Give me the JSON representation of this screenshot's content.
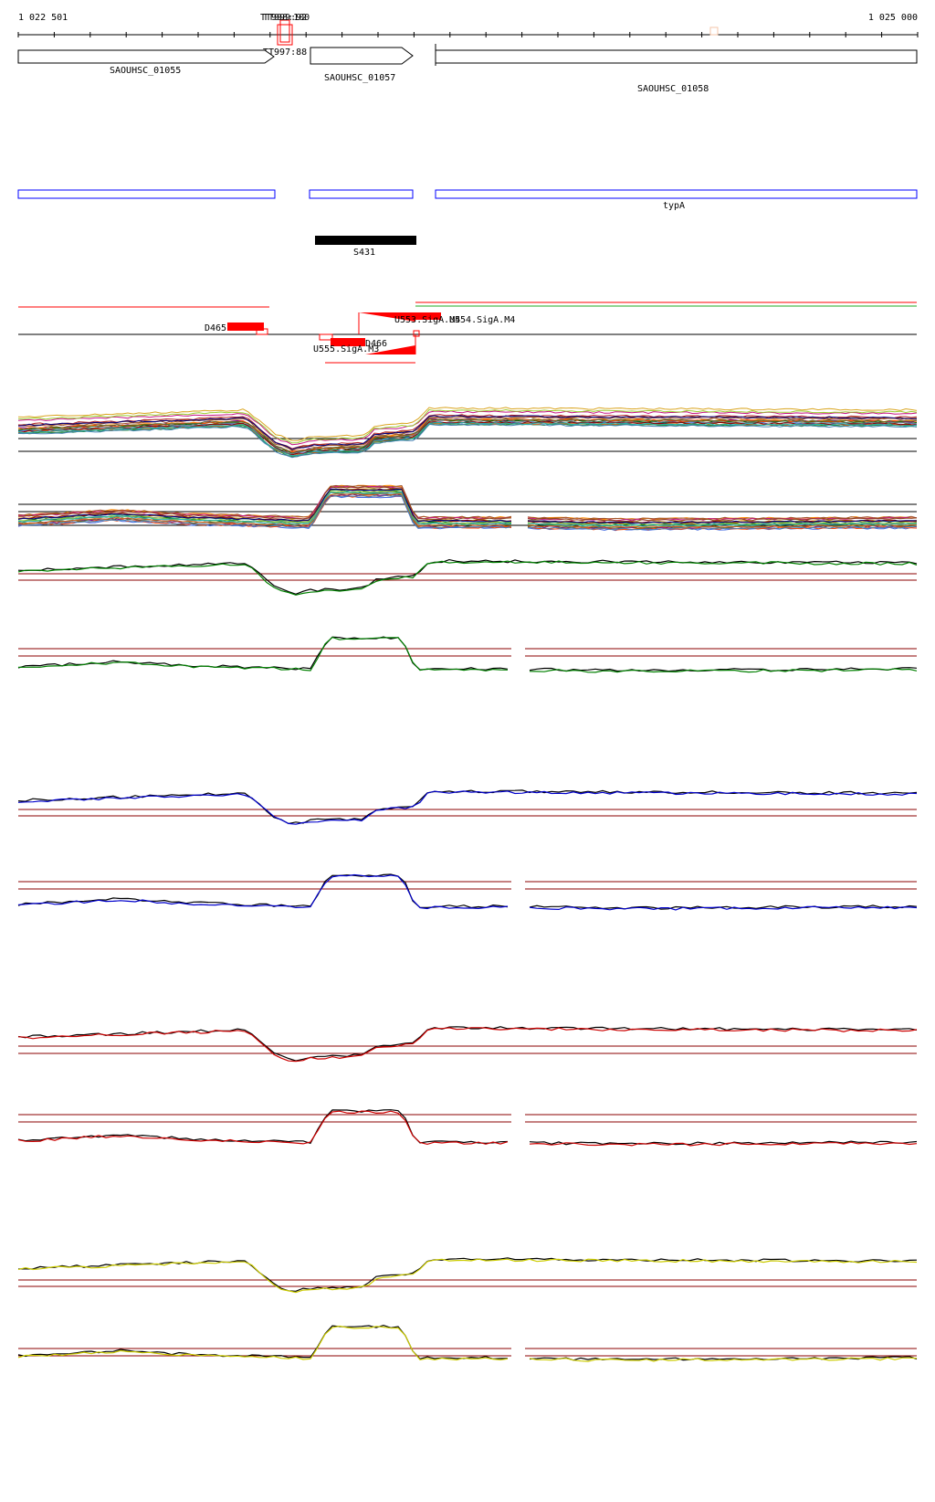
{
  "ruler": {
    "start_label": "1 022 501",
    "end_label": "1 025 000"
  },
  "terminators": {
    "top_label_a": "TT998:100",
    "top_label_b": "TT999:92",
    "bottom_label": "TT997:88"
  },
  "genes": [
    {
      "id": "SAOUHSC_01055"
    },
    {
      "id": "SAOUHSC_01057"
    },
    {
      "id": "SAOUHSC_01058"
    }
  ],
  "operons": {
    "label": "typA"
  },
  "srna": {
    "label": "S431"
  },
  "segments": {
    "d465": "D465",
    "d466": "D466",
    "u553": "U553.SigA.M4",
    "u554": "U554.SigA.M4",
    "u555": "U555.SigA.M3"
  },
  "colors": {
    "gene_outline": "#000000",
    "operon_outline": "#0000ff",
    "srna_fill": "#000000",
    "segment_fill": "#ff0000",
    "reference_line": "#8b0000",
    "condition_2": "#008000",
    "condition_3": "#0000cc",
    "condition_4": "#cc0000",
    "condition_5": "#cccc00"
  },
  "tracks": [
    {
      "name": "all-conditions-strand-plus",
      "color": "multicolor"
    },
    {
      "name": "all-conditions-strand-minus",
      "color": "multicolor"
    },
    {
      "name": "condition-2-strand-plus",
      "color": "#008000"
    },
    {
      "name": "condition-2-strand-minus",
      "color": "#008000"
    },
    {
      "name": "condition-3-strand-plus",
      "color": "#0000cc"
    },
    {
      "name": "condition-3-strand-minus",
      "color": "#0000cc"
    },
    {
      "name": "condition-4-strand-plus",
      "color": "#cc0000"
    },
    {
      "name": "condition-4-strand-minus",
      "color": "#cc0000"
    },
    {
      "name": "condition-5-strand-plus",
      "color": "#cccc00"
    },
    {
      "name": "condition-5-strand-minus",
      "color": "#cccc00"
    }
  ]
}
